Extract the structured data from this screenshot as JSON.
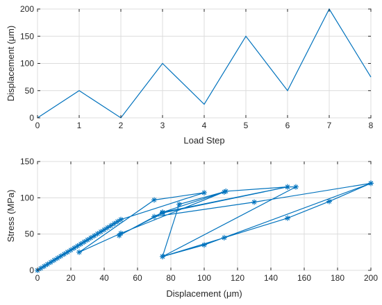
{
  "colors": {
    "series": "#0072BD"
  },
  "chart_data": [
    {
      "type": "line",
      "title": "",
      "xlabel": "Load Step",
      "ylabel": "Displacement (μm)",
      "xlim": [
        0,
        8
      ],
      "ylim": [
        0,
        200
      ],
      "xticks": [
        0,
        1,
        2,
        3,
        4,
        5,
        6,
        7,
        8
      ],
      "yticks": [
        0,
        50,
        100,
        150,
        200
      ],
      "grid": true,
      "series": [
        {
          "x": [
            0,
            1,
            2,
            3,
            4,
            5,
            6,
            7,
            8
          ],
          "y": [
            0,
            50,
            0,
            100,
            25,
            150,
            50,
            200,
            75
          ]
        }
      ]
    },
    {
      "type": "line",
      "title": "",
      "xlabel": "Displacement (μm)",
      "ylabel": "Stress (MPa)",
      "xlim": [
        0,
        200
      ],
      "ylim": [
        0,
        150
      ],
      "xticks": [
        0,
        20,
        40,
        60,
        80,
        100,
        120,
        140,
        160,
        180,
        200
      ],
      "yticks": [
        0,
        50,
        100,
        150
      ],
      "grid": true,
      "marker": "asterisk",
      "series": [
        {
          "x": [
            0,
            2,
            4,
            6,
            8,
            10,
            12,
            14,
            16,
            18,
            20,
            22,
            24,
            26,
            28,
            30,
            32,
            34,
            36,
            38,
            40,
            42,
            44,
            46,
            48,
            50,
            100,
            70,
            25,
            50,
            112,
            75,
            49,
            75,
            150,
            155,
            75,
            100,
            200,
            175,
            150,
            112,
            75,
            85,
            113,
            150,
            75,
            70,
            130,
            200
          ],
          "y": [
            0,
            2.8,
            5.6,
            8.4,
            11.2,
            14,
            16.8,
            19.6,
            22.4,
            25.2,
            28,
            30.8,
            33.6,
            36.4,
            39.2,
            42,
            44.8,
            47.6,
            50.4,
            53.2,
            56,
            58.8,
            61.6,
            64.4,
            67.2,
            70,
            107,
            97,
            25,
            51,
            108,
            80,
            48,
            79,
            115,
            115,
            19,
            35,
            120,
            95,
            72,
            45,
            19,
            91,
            109,
            115,
            80,
            74,
            94,
            120
          ]
        }
      ]
    }
  ]
}
